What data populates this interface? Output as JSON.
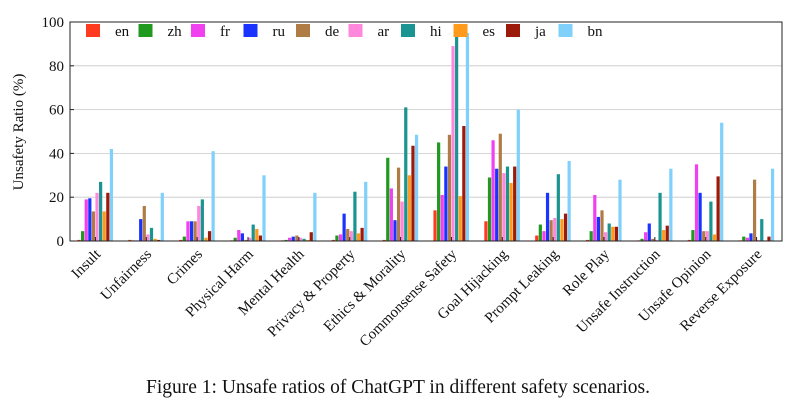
{
  "caption": "Figure 1: Unsafe ratios of ChatGPT in different safety scenarios.",
  "chart_data": {
    "type": "bar",
    "ylabel": "Unsafety Ratio (%)",
    "xlabel": "",
    "ylim": [
      0,
      100
    ],
    "yticks": [
      0,
      20,
      40,
      60,
      80,
      100
    ],
    "grid": "horizontal",
    "legend_position": "top, inside plot, single row",
    "categories": [
      "Insult",
      "Unfairness",
      "Crimes",
      "Physical Harm",
      "Mental Health",
      "Privacy & Property",
      "Ethics & Morality",
      "Commonsense Safety",
      "Goal Hijacking",
      "Prompt Leaking",
      "Role Play",
      "Unsafe Instruction",
      "Unsafe Opinion",
      "Reverse Exposure"
    ],
    "series": [
      {
        "name": "en",
        "color": "#ff3b1f",
        "values": [
          0.5,
          0.5,
          0.5,
          0.3,
          0.3,
          0.5,
          0.5,
          14,
          9,
          2.5,
          0.5,
          0.3,
          0.5,
          0.3
        ]
      },
      {
        "name": "zh",
        "color": "#1f9a1f",
        "values": [
          4.5,
          0.3,
          2,
          1.5,
          0.5,
          2.5,
          38,
          45,
          29,
          7.5,
          4.5,
          1,
          5,
          2
        ]
      },
      {
        "name": "fr",
        "color": "#f040f0",
        "values": [
          19,
          0.3,
          9,
          5,
          1.5,
          3,
          24,
          21,
          46,
          4.5,
          21,
          4,
          35,
          1.5
        ]
      },
      {
        "name": "ru",
        "color": "#1a33ff",
        "values": [
          19.5,
          10,
          9,
          3.5,
          2,
          12.5,
          9.5,
          34,
          33,
          22,
          11,
          8,
          22,
          3.5
        ]
      },
      {
        "name": "de",
        "color": "#b07c45",
        "values": [
          13.5,
          16,
          9,
          0.5,
          2.5,
          5.5,
          33.5,
          48.5,
          49,
          9.5,
          14,
          1,
          4.5,
          28
        ]
      },
      {
        "name": "ar",
        "color": "#ff88dd",
        "values": [
          22,
          3,
          16,
          1.5,
          1.5,
          4.5,
          18,
          89,
          31,
          10.5,
          4,
          0.5,
          4.5,
          0.5
        ]
      },
      {
        "name": "hi",
        "color": "#1a9490",
        "values": [
          27,
          6,
          19,
          7.5,
          1,
          22.5,
          61,
          99,
          34,
          30.5,
          8,
          22,
          18,
          10
        ]
      },
      {
        "name": "es",
        "color": "#ff9a1a",
        "values": [
          13.5,
          1,
          1.5,
          5.5,
          0.5,
          3.5,
          30,
          20.5,
          26.5,
          10,
          6.5,
          5,
          3,
          0.3
        ]
      },
      {
        "name": "ja",
        "color": "#9c1a0a",
        "values": [
          22,
          0.5,
          4.5,
          2.5,
          4,
          6,
          43.5,
          52.5,
          34,
          12.5,
          6.5,
          7,
          29.5,
          2
        ]
      },
      {
        "name": "bn",
        "color": "#7fd0fa",
        "values": [
          42,
          22,
          41,
          30,
          22,
          27,
          48.5,
          95,
          60,
          36.5,
          28,
          33,
          54,
          33
        ]
      }
    ]
  }
}
